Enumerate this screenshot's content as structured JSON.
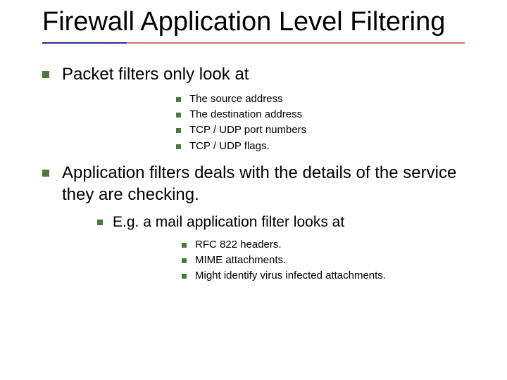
{
  "title": "Firewall Application Level Filtering",
  "colors": {
    "bullet": "#4a7a3a",
    "rule_left": "#2a2a9a",
    "rule_right": "#d07a6a",
    "text": "#000000",
    "background": "#ffffff"
  },
  "typography": {
    "title_font": "Trebuchet MS",
    "body_font": "Verdana",
    "title_size_pt": 29,
    "lvl1_size_pt": 18,
    "lvl2_size_pt": 11,
    "lvl2b_size_pt": 16,
    "lvl3_size_pt": 11
  },
  "items": [
    {
      "text": "Packet filters only look at",
      "sub": [
        "The source address",
        "The destination address",
        "TCP / UDP port numbers",
        "TCP / UDP flags."
      ]
    },
    {
      "text": "Application filters deals with the details of the service they are checking.",
      "sub2": [
        {
          "text": "E.g. a mail application filter looks at",
          "sub": [
            "RFC 822 headers.",
            "MIME attachments.",
            "Might identify virus infected attachments."
          ]
        }
      ]
    }
  ]
}
